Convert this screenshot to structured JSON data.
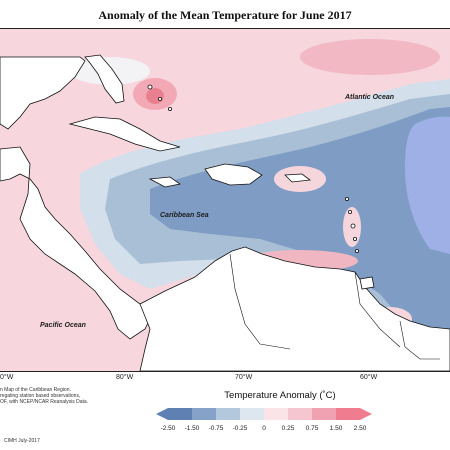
{
  "title": "Anomaly of the Mean Temperature for June 2017",
  "labels": {
    "atlantic": "Atlantic Ocean",
    "caribbean": "Caribbean Sea",
    "pacific": "Pacific Ocean"
  },
  "longitudes": [
    "0°W",
    "80°W",
    "70°W",
    "60°W"
  ],
  "legend": {
    "title": "Temperature Anomaly (˚C)",
    "ticks": [
      "-2.50",
      "-1.50",
      "-0.75",
      "-0.25",
      "0",
      "0.25",
      "0.75",
      "1.50",
      "2.50"
    ],
    "colors": [
      "#5f80b3",
      "#86a2c9",
      "#b3c8dd",
      "#dde7ef",
      "#fbe4e8",
      "#f6c6d0",
      "#f0a2b2",
      "#f07c8f"
    ]
  },
  "notes": [
    "n Map of the Caribbean Region.",
    "regating station based observations,",
    "OF, with NCEP/NCAR Reanalysis Data."
  ],
  "credit": "CIMH July-2017"
}
